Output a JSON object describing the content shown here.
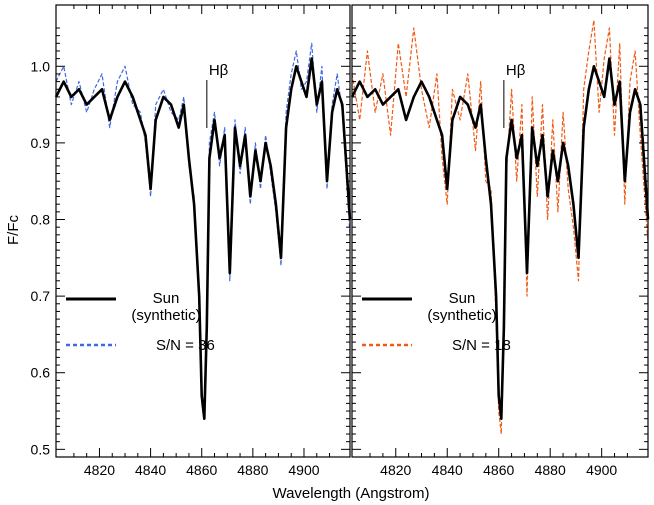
{
  "chart_data": {
    "type": "line",
    "xlabel": "Wavelength (Angstrom)",
    "ylabel": "F/Fc",
    "xlim": [
      4803,
      4918
    ],
    "ylim": [
      0.49,
      1.08
    ],
    "x_ticks": [
      4820,
      4840,
      4860,
      4880,
      4900
    ],
    "y_ticks": [
      0.5,
      0.6,
      0.7,
      0.8,
      0.9,
      1.0
    ],
    "y_tick_labels": [
      "0.5",
      "0.6",
      "0.7",
      "0.8",
      "0.9",
      "1.0"
    ],
    "panels": [
      {
        "annotation": "Hβ",
        "annotation_x": 4862,
        "legend": [
          {
            "label_line1": "Sun",
            "label_line2": "(synthetic)",
            "style": "solid",
            "color": "#000000"
          },
          {
            "label_line1": "S/N = 36",
            "label_line2": "",
            "style": "dashed",
            "color": "#4169e1"
          }
        ],
        "series": [
          {
            "name": "Sun (synthetic)",
            "color": "#000000",
            "style": "solid",
            "x": [
              4803,
              4806,
              4809,
              4812,
              4815,
              4818,
              4821,
              4824,
              4827,
              4830,
              4833,
              4836,
              4838,
              4840,
              4842,
              4845,
              4848,
              4851,
              4853,
              4855,
              4857,
              4859,
              4860,
              4861,
              4862,
              4863,
              4865,
              4867,
              4869,
              4871,
              4873,
              4875,
              4877,
              4879,
              4881,
              4883,
              4885,
              4887,
              4889,
              4891,
              4893,
              4895,
              4897,
              4899,
              4901,
              4903,
              4905,
              4907,
              4909,
              4911,
              4913,
              4915,
              4918
            ],
            "y": [
              0.96,
              0.98,
              0.96,
              0.97,
              0.95,
              0.96,
              0.97,
              0.93,
              0.96,
              0.98,
              0.96,
              0.93,
              0.91,
              0.84,
              0.93,
              0.96,
              0.95,
              0.92,
              0.95,
              0.88,
              0.82,
              0.7,
              0.57,
              0.54,
              0.66,
              0.88,
              0.93,
              0.88,
              0.91,
              0.73,
              0.92,
              0.87,
              0.91,
              0.83,
              0.89,
              0.85,
              0.9,
              0.87,
              0.82,
              0.75,
              0.92,
              0.97,
              1.0,
              0.98,
              0.96,
              1.01,
              0.95,
              0.98,
              0.85,
              0.94,
              0.97,
              0.95,
              0.8
            ]
          },
          {
            "name": "S/N = 36",
            "color": "#4169e1",
            "style": "dashed",
            "x": [
              4803,
              4806,
              4809,
              4812,
              4815,
              4818,
              4821,
              4824,
              4827,
              4830,
              4833,
              4836,
              4838,
              4840,
              4842,
              4845,
              4848,
              4851,
              4853,
              4855,
              4857,
              4859,
              4860,
              4861,
              4862,
              4863,
              4865,
              4867,
              4869,
              4871,
              4873,
              4875,
              4877,
              4879,
              4881,
              4883,
              4885,
              4887,
              4889,
              4891,
              4893,
              4895,
              4897,
              4899,
              4901,
              4903,
              4905,
              4907,
              4909,
              4911,
              4913,
              4915,
              4918
            ],
            "y": [
              0.98,
              1.0,
              0.95,
              0.98,
              0.94,
              0.97,
              0.99,
              0.92,
              0.98,
              1.0,
              0.95,
              0.94,
              0.9,
              0.83,
              0.95,
              0.97,
              0.94,
              0.93,
              0.96,
              0.87,
              0.83,
              0.69,
              0.56,
              0.54,
              0.68,
              0.9,
              0.94,
              0.87,
              0.92,
              0.72,
              0.93,
              0.86,
              0.92,
              0.82,
              0.9,
              0.84,
              0.91,
              0.86,
              0.81,
              0.74,
              0.94,
              0.99,
              1.02,
              0.97,
              0.98,
              1.03,
              0.94,
              1.0,
              0.84,
              0.95,
              0.99,
              0.94,
              0.78
            ]
          }
        ]
      },
      {
        "annotation": "Hβ",
        "annotation_x": 4862,
        "legend": [
          {
            "label_line1": "Sun",
            "label_line2": "(synthetic)",
            "style": "solid",
            "color": "#000000"
          },
          {
            "label_line1": "S/N = 18",
            "label_line2": "",
            "style": "dashed",
            "color": "#f05a14"
          }
        ],
        "series": [
          {
            "name": "Sun (synthetic)",
            "color": "#000000",
            "style": "solid",
            "x": [
              4803,
              4806,
              4809,
              4812,
              4815,
              4818,
              4821,
              4824,
              4827,
              4830,
              4833,
              4836,
              4838,
              4840,
              4842,
              4845,
              4848,
              4851,
              4853,
              4855,
              4857,
              4859,
              4860,
              4861,
              4862,
              4863,
              4865,
              4867,
              4869,
              4871,
              4873,
              4875,
              4877,
              4879,
              4881,
              4883,
              4885,
              4887,
              4889,
              4891,
              4893,
              4895,
              4897,
              4899,
              4901,
              4903,
              4905,
              4907,
              4909,
              4911,
              4913,
              4915,
              4918
            ],
            "y": [
              0.96,
              0.98,
              0.96,
              0.97,
              0.95,
              0.96,
              0.97,
              0.93,
              0.96,
              0.98,
              0.96,
              0.93,
              0.91,
              0.84,
              0.93,
              0.96,
              0.95,
              0.92,
              0.95,
              0.88,
              0.82,
              0.7,
              0.57,
              0.54,
              0.66,
              0.88,
              0.93,
              0.88,
              0.91,
              0.73,
              0.92,
              0.87,
              0.91,
              0.83,
              0.89,
              0.85,
              0.9,
              0.87,
              0.82,
              0.75,
              0.92,
              0.97,
              1.0,
              0.98,
              0.96,
              1.01,
              0.95,
              0.98,
              0.85,
              0.94,
              0.97,
              0.95,
              0.8
            ]
          },
          {
            "name": "S/N = 18",
            "color": "#f05a14",
            "style": "dashed",
            "x": [
              4803,
              4806,
              4809,
              4812,
              4815,
              4818,
              4821,
              4824,
              4827,
              4830,
              4833,
              4836,
              4838,
              4840,
              4842,
              4845,
              4848,
              4851,
              4853,
              4855,
              4857,
              4859,
              4860,
              4861,
              4862,
              4863,
              4865,
              4867,
              4869,
              4871,
              4873,
              4875,
              4877,
              4879,
              4881,
              4883,
              4885,
              4887,
              4889,
              4891,
              4893,
              4895,
              4897,
              4899,
              4901,
              4903,
              4905,
              4907,
              4909,
              4911,
              4913,
              4915,
              4918
            ],
            "y": [
              0.99,
              0.93,
              1.02,
              0.94,
              0.99,
              0.91,
              1.03,
              0.96,
              1.05,
              0.97,
              0.92,
              0.99,
              0.88,
              0.82,
              0.97,
              0.93,
              0.99,
              0.89,
              0.98,
              0.85,
              0.84,
              0.67,
              0.55,
              0.52,
              0.7,
              0.86,
              0.97,
              0.85,
              0.95,
              0.7,
              0.96,
              0.83,
              0.95,
              0.8,
              0.93,
              0.81,
              0.94,
              0.84,
              0.79,
              0.72,
              0.97,
              1.02,
              1.06,
              0.94,
              1.01,
              1.05,
              0.91,
              1.03,
              0.82,
              0.98,
              1.02,
              0.91,
              0.77
            ]
          }
        ]
      }
    ]
  }
}
